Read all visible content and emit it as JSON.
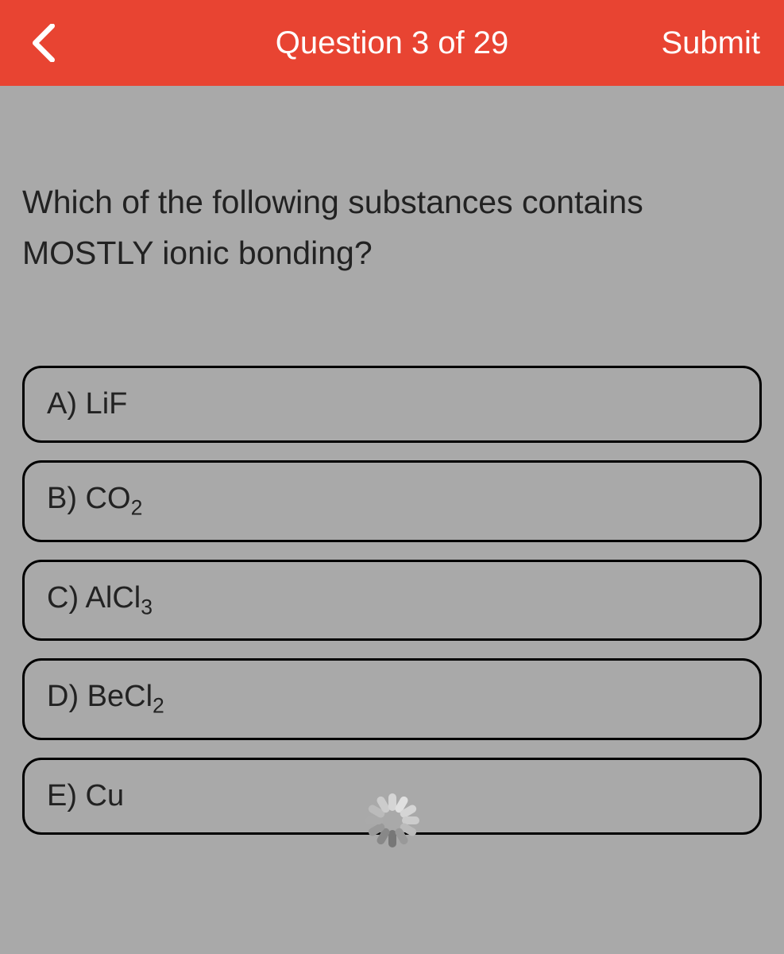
{
  "header": {
    "title": "Question 3 of 29",
    "submit_label": "Submit",
    "background_color": "#e84432",
    "text_color": "#ffffff"
  },
  "question": {
    "text": "Which of the following substances contains MOSTLY ionic bonding?"
  },
  "options": [
    {
      "label": "A)",
      "formula": "LiF",
      "subscript": ""
    },
    {
      "label": "B)",
      "formula": "CO",
      "subscript": "2"
    },
    {
      "label": "C)",
      "formula": "AlCl",
      "subscript": "3"
    },
    {
      "label": "D)",
      "formula": "BeCl",
      "subscript": "2"
    },
    {
      "label": "E)",
      "formula": "Cu",
      "subscript": ""
    }
  ],
  "styling": {
    "page_background": "#a9a9a9",
    "option_border_color": "#000000",
    "option_border_radius": 24,
    "option_border_width": 3,
    "text_color": "#222222",
    "question_fontsize": 41,
    "option_fontsize": 38
  },
  "spinner": {
    "blade_colors": [
      "#777777",
      "#888888",
      "#999999",
      "#aaaaaa",
      "#bbbbbb",
      "#cccccc",
      "#d5d5d5",
      "#e0e0e0",
      "#d5d5d5",
      "#cccccc",
      "#bbbbbb",
      "#999999"
    ]
  }
}
